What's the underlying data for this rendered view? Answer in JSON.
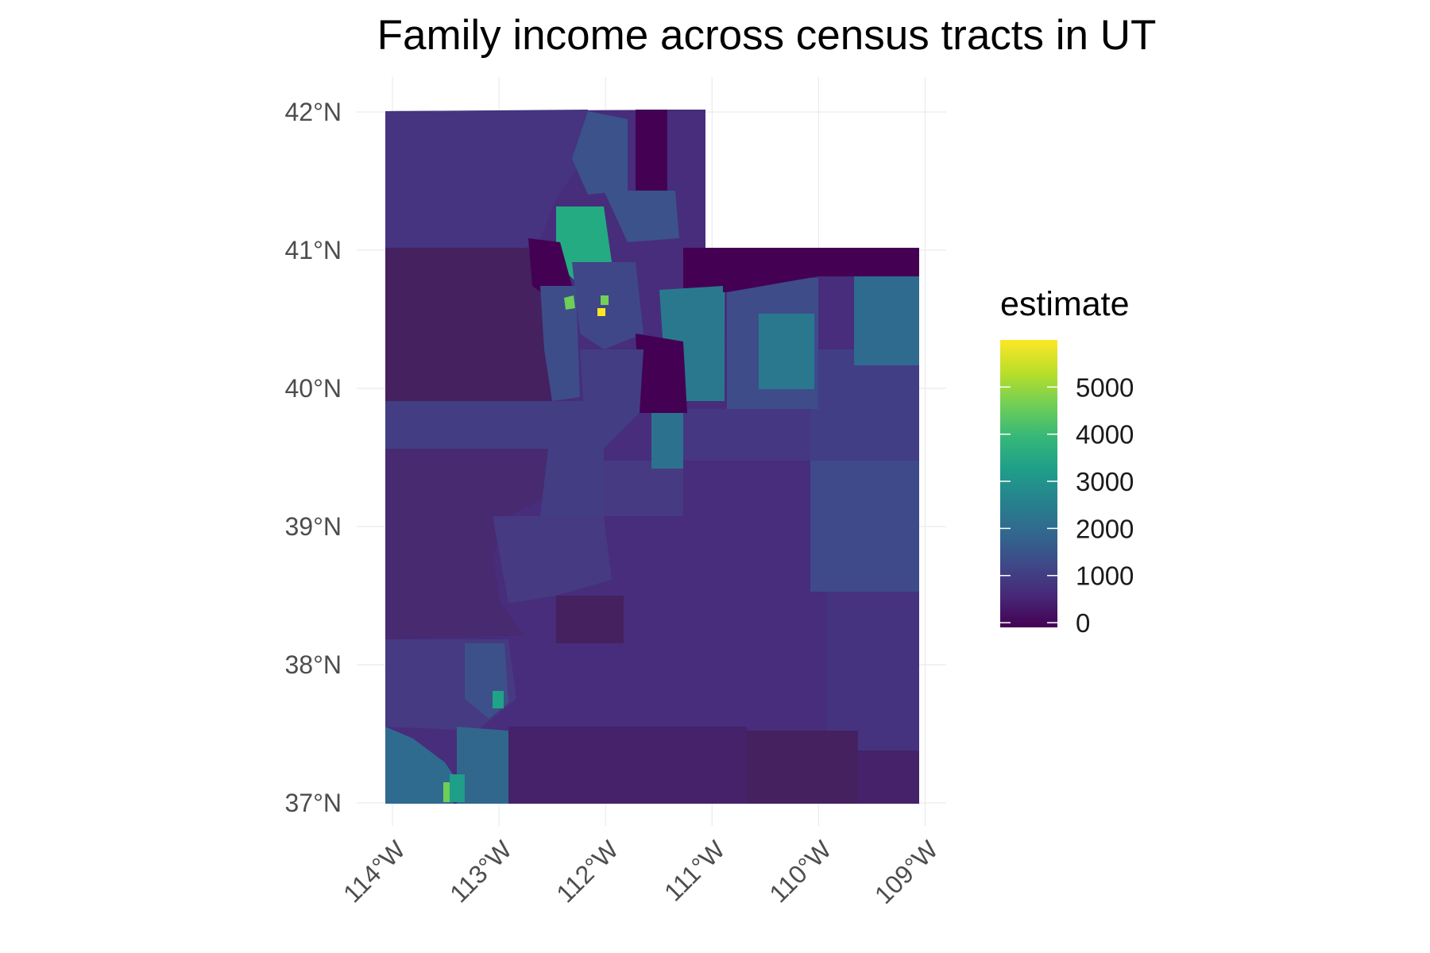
{
  "title": "Family income across census tracts in UT",
  "chart_data": {
    "type": "choropleth map",
    "title": "Family income across census tracts in UT",
    "region": "UT",
    "y_axis_ticks": [
      "37°N",
      "38°N",
      "39°N",
      "40°N",
      "41°N",
      "42°N"
    ],
    "x_axis_ticks": [
      "114°W",
      "113°W",
      "112°W",
      "111°W",
      "110°W",
      "109°W"
    ],
    "lat_range": [
      36.95,
      42.25
    ],
    "lon_range": [
      -114.1,
      -108.8
    ],
    "legend": {
      "title": "estimate",
      "ticks": [
        0,
        1000,
        2000,
        3000,
        4000,
        5000
      ],
      "tick_labels": [
        "0",
        "1000",
        "2000",
        "3000",
        "4000",
        "5000"
      ],
      "range": [
        -100,
        6000
      ],
      "colormap": "viridis",
      "placement": "right"
    },
    "grid": true
  },
  "colors": {
    "viridis_0": "#440154",
    "viridis_1": "#482878",
    "viridis_2": "#3e4989",
    "viridis_3": "#31688e",
    "viridis_4": "#26828e",
    "viridis_5": "#1f9e89",
    "viridis_6": "#35b779",
    "viridis_7": "#6ece58",
    "viridis_8": "#b5de2b",
    "viridis_9": "#fde725"
  }
}
